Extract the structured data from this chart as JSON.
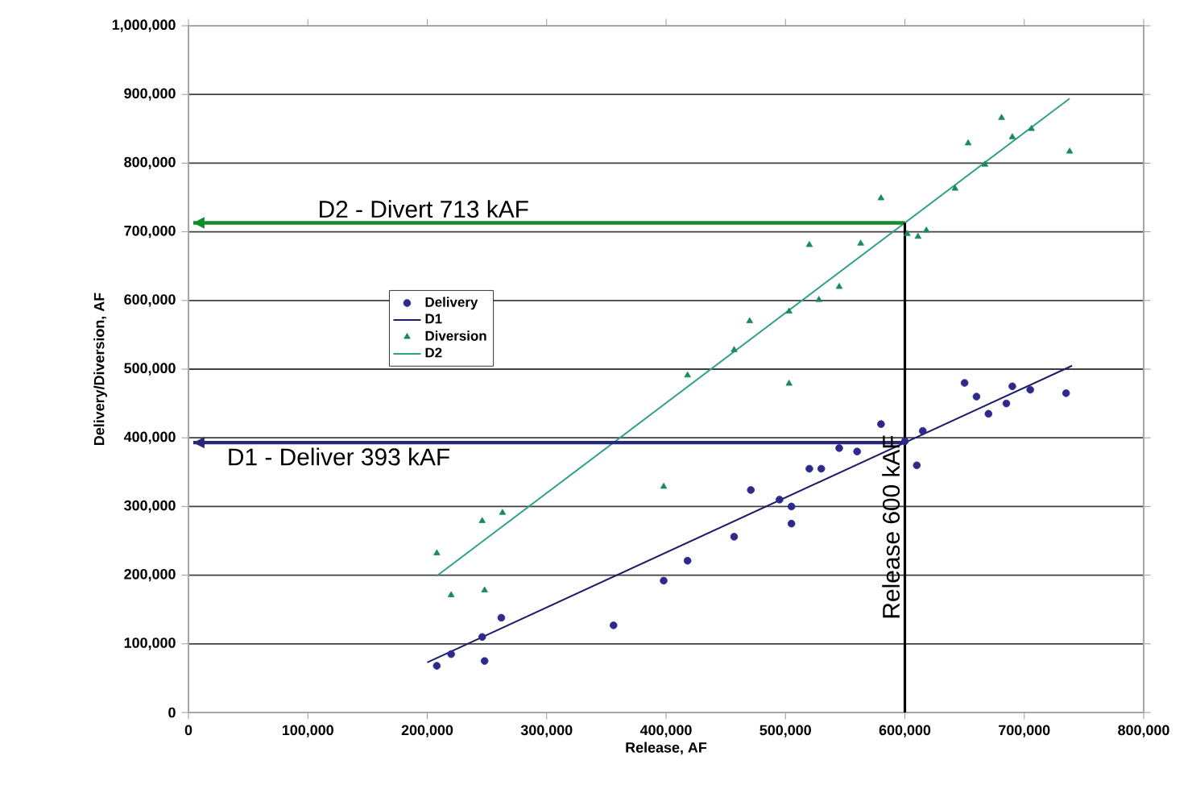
{
  "chart_data": {
    "type": "scatter",
    "xlabel": "Release, AF",
    "ylabel": "Delivery/Diversion, AF",
    "xlim": [
      0,
      800000
    ],
    "ylim": [
      0,
      1000000
    ],
    "xticks": [
      0,
      {
        "value": 100000,
        "label": "100,000"
      },
      {
        "value": 200000,
        "label": "200,000"
      },
      {
        "value": 300000,
        "label": "300,000"
      },
      {
        "value": 400000,
        "label": "400,000"
      },
      {
        "value": 500000,
        "label": "500,000"
      },
      {
        "value": 600000,
        "label": "600,000"
      },
      {
        "value": 700000,
        "label": "700,000"
      },
      {
        "value": 800000,
        "label": "800,000"
      }
    ],
    "yticks": [
      0,
      {
        "value": 100000,
        "label": "100,000"
      },
      {
        "value": 200000,
        "label": "200,000"
      },
      {
        "value": 300000,
        "label": "300,000"
      },
      {
        "value": 400000,
        "label": "400,000"
      },
      {
        "value": 500000,
        "label": "500,000"
      },
      {
        "value": 600000,
        "label": "600,000"
      },
      {
        "value": 700000,
        "label": "700,000"
      },
      {
        "value": 800000,
        "label": "800,000"
      },
      {
        "value": 900000,
        "label": "900,000"
      },
      {
        "value": 1000000,
        "label": "1,000,000"
      }
    ],
    "grid": "y",
    "legend": "center left",
    "series": [
      {
        "name": "Delivery",
        "type": "scatter",
        "marker": "circle",
        "color": "#2e2a8c",
        "x": [
          208000,
          220000,
          246000,
          248000,
          262000,
          356000,
          398000,
          418000,
          457000,
          471000,
          495000,
          505000,
          505000,
          520000,
          530000,
          545000,
          560000,
          580000,
          600000,
          610000,
          615000,
          650000,
          660000,
          670000,
          685000,
          690000,
          705000,
          735000
        ],
        "values": [
          68000,
          85000,
          110000,
          75000,
          138000,
          127000,
          192000,
          221000,
          256000,
          324000,
          310000,
          300000,
          275000,
          355000,
          355000,
          385000,
          380000,
          420000,
          395000,
          360000,
          410000,
          480000,
          460000,
          435000,
          450000,
          475000,
          470000,
          465000
        ]
      },
      {
        "name": "D1",
        "type": "line",
        "marker": "none",
        "color": "#1c1c6b",
        "x": [
          200000,
          740000
        ],
        "values": [
          73000,
          505000
        ]
      },
      {
        "name": "Diversion",
        "type": "scatter",
        "marker": "triangle",
        "color": "#1a8a5a",
        "x": [
          208000,
          220000,
          246000,
          248000,
          263000,
          398000,
          418000,
          457000,
          470000,
          503000,
          503000,
          528000,
          520000,
          545000,
          563000,
          580000,
          602000,
          611000,
          618000,
          642000,
          653000,
          667000,
          681000,
          690000,
          706000,
          738000
        ],
        "values": [
          232000,
          171000,
          279000,
          178000,
          291000,
          329000,
          491000,
          528000,
          570000,
          584000,
          479000,
          601000,
          681000,
          620000,
          683000,
          749000,
          697000,
          693000,
          702000,
          763000,
          829000,
          798000,
          866000,
          838000,
          850000,
          817000
        ]
      },
      {
        "name": "D2",
        "type": "line",
        "marker": "none",
        "color": "#2fa08a",
        "x": [
          208000,
          738000
        ],
        "values": [
          199000,
          894000
        ]
      }
    ],
    "ref_lines": [
      {
        "axis": "y",
        "value": 713000,
        "label": "D2 - Divert 713 kAF",
        "color": "#138a2c"
      },
      {
        "axis": "y",
        "value": 393000,
        "label": "D1 - Deliver 393 kAF",
        "color": "#28287a"
      },
      {
        "axis": "x",
        "value": 600000,
        "label": "Release 600 kAF",
        "color": "#000000"
      }
    ]
  }
}
